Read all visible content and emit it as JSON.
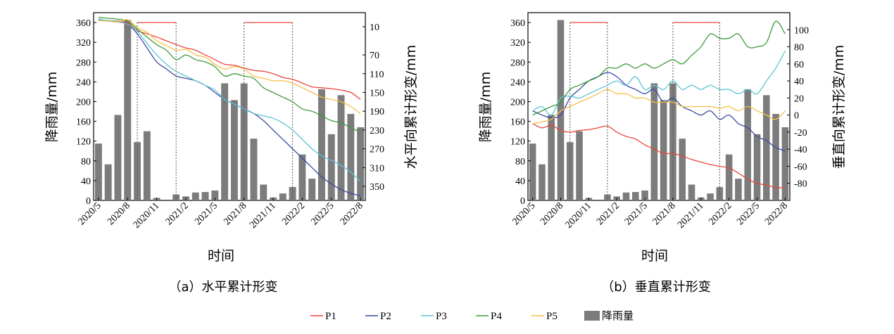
{
  "legend": [
    {
      "key": "P1",
      "label": "P1",
      "color": "#e8473d",
      "kind": "line"
    },
    {
      "key": "P2",
      "label": "P2",
      "color": "#3a4ba3",
      "kind": "line"
    },
    {
      "key": "P3",
      "label": "P3",
      "color": "#5cc4d4",
      "kind": "line"
    },
    {
      "key": "P4",
      "label": "P4",
      "color": "#3f9c3a",
      "kind": "line"
    },
    {
      "key": "P5",
      "label": "P5",
      "color": "#f6bf48",
      "kind": "line"
    },
    {
      "key": "rain",
      "label": "降雨量",
      "color": "#7c7c7c",
      "kind": "bar"
    }
  ],
  "chart_data": [
    {
      "type": "bar+line",
      "caption": "（a）水平累计形变",
      "xlabel": "时间",
      "ylabel_left": "降雨量/mm",
      "ylabel_right": "水平向累计形变/mm",
      "x_tick_labels": [
        "2020/5",
        "2020/8",
        "2020/11",
        "2021/2",
        "2021/5",
        "2021/8",
        "2021/11",
        "2022/2",
        "2022/5",
        "2022/8"
      ],
      "months": [
        "2020/5",
        "2020/6",
        "2020/7",
        "2020/8",
        "2020/9",
        "2020/10",
        "2020/11",
        "2020/12",
        "2021/1",
        "2021/2",
        "2021/3",
        "2021/4",
        "2021/5",
        "2021/6",
        "2021/7",
        "2021/8",
        "2021/9",
        "2021/10",
        "2021/11",
        "2021/12",
        "2022/1",
        "2022/2",
        "2022/3",
        "2022/4",
        "2022/5",
        "2022/6",
        "2022/7",
        "2022/8"
      ],
      "left_axis": {
        "min": 0,
        "max": 380,
        "ticks": [
          0,
          40,
          80,
          120,
          160,
          200,
          240,
          280,
          320,
          360
        ]
      },
      "right_axis": {
        "inverted": true,
        "min": -20,
        "max": 380,
        "ticks": [
          10,
          70,
          110,
          150,
          190,
          230,
          270,
          310,
          350
        ]
      },
      "rainfall": [
        115,
        73,
        173,
        365,
        118,
        140,
        5,
        0,
        12,
        8,
        16,
        17,
        20,
        237,
        203,
        237,
        125,
        32,
        6,
        14,
        27,
        93,
        44,
        225,
        134,
        213,
        175,
        148
      ],
      "series": [
        {
          "name": "P1",
          "color": "#e8473d",
          "values": [
            -5,
            -3,
            -2,
            2,
            18,
            25,
            32,
            40,
            48,
            55,
            60,
            70,
            80,
            90,
            92,
            98,
            103,
            105,
            110,
            118,
            122,
            130,
            138,
            140,
            142,
            145,
            150,
            165
          ]
        },
        {
          "name": "P2",
          "color": "#3a4ba3",
          "values": [
            -5,
            -2,
            0,
            5,
            25,
            55,
            85,
            100,
            115,
            120,
            125,
            135,
            150,
            165,
            175,
            185,
            195,
            210,
            230,
            250,
            270,
            290,
            310,
            330,
            345,
            357,
            365,
            370
          ]
        },
        {
          "name": "P3",
          "color": "#5cc4d4",
          "values": [
            -6,
            -3,
            -1,
            5,
            20,
            45,
            70,
            90,
            105,
            115,
            125,
            135,
            145,
            165,
            175,
            185,
            195,
            200,
            205,
            215,
            230,
            250,
            270,
            285,
            295,
            305,
            320,
            340
          ]
        },
        {
          "name": "P4",
          "color": "#3f9c3a",
          "values": [
            -10,
            -8,
            -6,
            -2,
            15,
            32,
            48,
            60,
            80,
            70,
            80,
            85,
            95,
            115,
            110,
            115,
            120,
            140,
            150,
            160,
            170,
            185,
            190,
            200,
            210,
            215,
            225,
            235
          ]
        },
        {
          "name": "P5",
          "color": "#f6bf48",
          "values": [
            -3,
            -2,
            0,
            -5,
            12,
            22,
            40,
            50,
            60,
            58,
            70,
            75,
            90,
            100,
            95,
            100,
            115,
            120,
            125,
            125,
            130,
            140,
            150,
            160,
            165,
            170,
            180,
            195
          ]
        }
      ],
      "highlight_periods": [
        [
          "2020/9",
          "2021/1"
        ],
        [
          "2021/8",
          "2022/1"
        ]
      ]
    },
    {
      "type": "bar+line",
      "caption": "（b）垂直累计形变",
      "xlabel": "时间",
      "ylabel_left": "降雨量/mm",
      "ylabel_right": "垂直向累计形变/mm",
      "x_tick_labels": [
        "2020/5",
        "2020/8",
        "2020/11",
        "2021/2",
        "2021/5",
        "2021/8",
        "2021/11",
        "2022/2",
        "2022/5",
        "2022/8"
      ],
      "months": [
        "2020/5",
        "2020/6",
        "2020/7",
        "2020/8",
        "2020/9",
        "2020/10",
        "2020/11",
        "2020/12",
        "2021/1",
        "2021/2",
        "2021/3",
        "2021/4",
        "2021/5",
        "2021/6",
        "2021/7",
        "2021/8",
        "2021/9",
        "2021/10",
        "2021/11",
        "2021/12",
        "2022/1",
        "2022/2",
        "2022/3",
        "2022/4",
        "2022/5",
        "2022/6",
        "2022/7",
        "2022/8"
      ],
      "left_axis": {
        "min": 0,
        "max": 380,
        "ticks": [
          0,
          40,
          80,
          120,
          160,
          200,
          240,
          280,
          320,
          360
        ]
      },
      "right_axis": {
        "inverted": false,
        "min": -100,
        "max": 120,
        "ticks": [
          -80,
          -60,
          -40,
          -20,
          0,
          20,
          40,
          60,
          80,
          100
        ]
      },
      "rainfall": [
        115,
        73,
        173,
        365,
        118,
        140,
        5,
        0,
        12,
        8,
        16,
        17,
        20,
        237,
        203,
        237,
        125,
        32,
        6,
        14,
        27,
        93,
        44,
        225,
        134,
        213,
        175,
        148
      ],
      "series": [
        {
          "name": "P1",
          "color": "#e8473d",
          "values": [
            -10,
            -15,
            -12,
            -18,
            -20,
            -18,
            -17,
            -15,
            -13,
            -20,
            -25,
            -28,
            -35,
            -40,
            -45,
            -45,
            -48,
            -52,
            -55,
            -58,
            -60,
            -62,
            -68,
            -75,
            -80,
            -82,
            -85,
            -85
          ]
        },
        {
          "name": "P2",
          "color": "#3a4ba3",
          "values": [
            5,
            0,
            -3,
            0,
            20,
            30,
            40,
            45,
            50,
            45,
            35,
            30,
            25,
            30,
            15,
            20,
            10,
            5,
            0,
            5,
            -5,
            0,
            -10,
            -15,
            -25,
            -30,
            -38,
            -42
          ]
        },
        {
          "name": "P3",
          "color": "#5cc4d4",
          "values": [
            5,
            10,
            0,
            20,
            22,
            20,
            25,
            30,
            35,
            40,
            35,
            45,
            30,
            35,
            30,
            40,
            30,
            35,
            30,
            35,
            30,
            30,
            25,
            30,
            25,
            40,
            55,
            75
          ]
        },
        {
          "name": "P4",
          "color": "#3f9c3a",
          "values": [
            0,
            5,
            10,
            15,
            30,
            35,
            40,
            45,
            55,
            55,
            60,
            55,
            60,
            55,
            60,
            65,
            60,
            70,
            80,
            95,
            90,
            90,
            95,
            80,
            80,
            85,
            110,
            95
          ]
        },
        {
          "name": "P5",
          "color": "#f6bf48",
          "values": [
            -10,
            -8,
            -5,
            5,
            10,
            15,
            20,
            25,
            30,
            25,
            25,
            20,
            20,
            15,
            15,
            15,
            10,
            10,
            10,
            10,
            8,
            10,
            5,
            10,
            5,
            0,
            -5,
            5
          ]
        }
      ],
      "highlight_periods": [
        [
          "2020/9",
          "2021/1"
        ],
        [
          "2021/8",
          "2022/1"
        ]
      ]
    }
  ]
}
